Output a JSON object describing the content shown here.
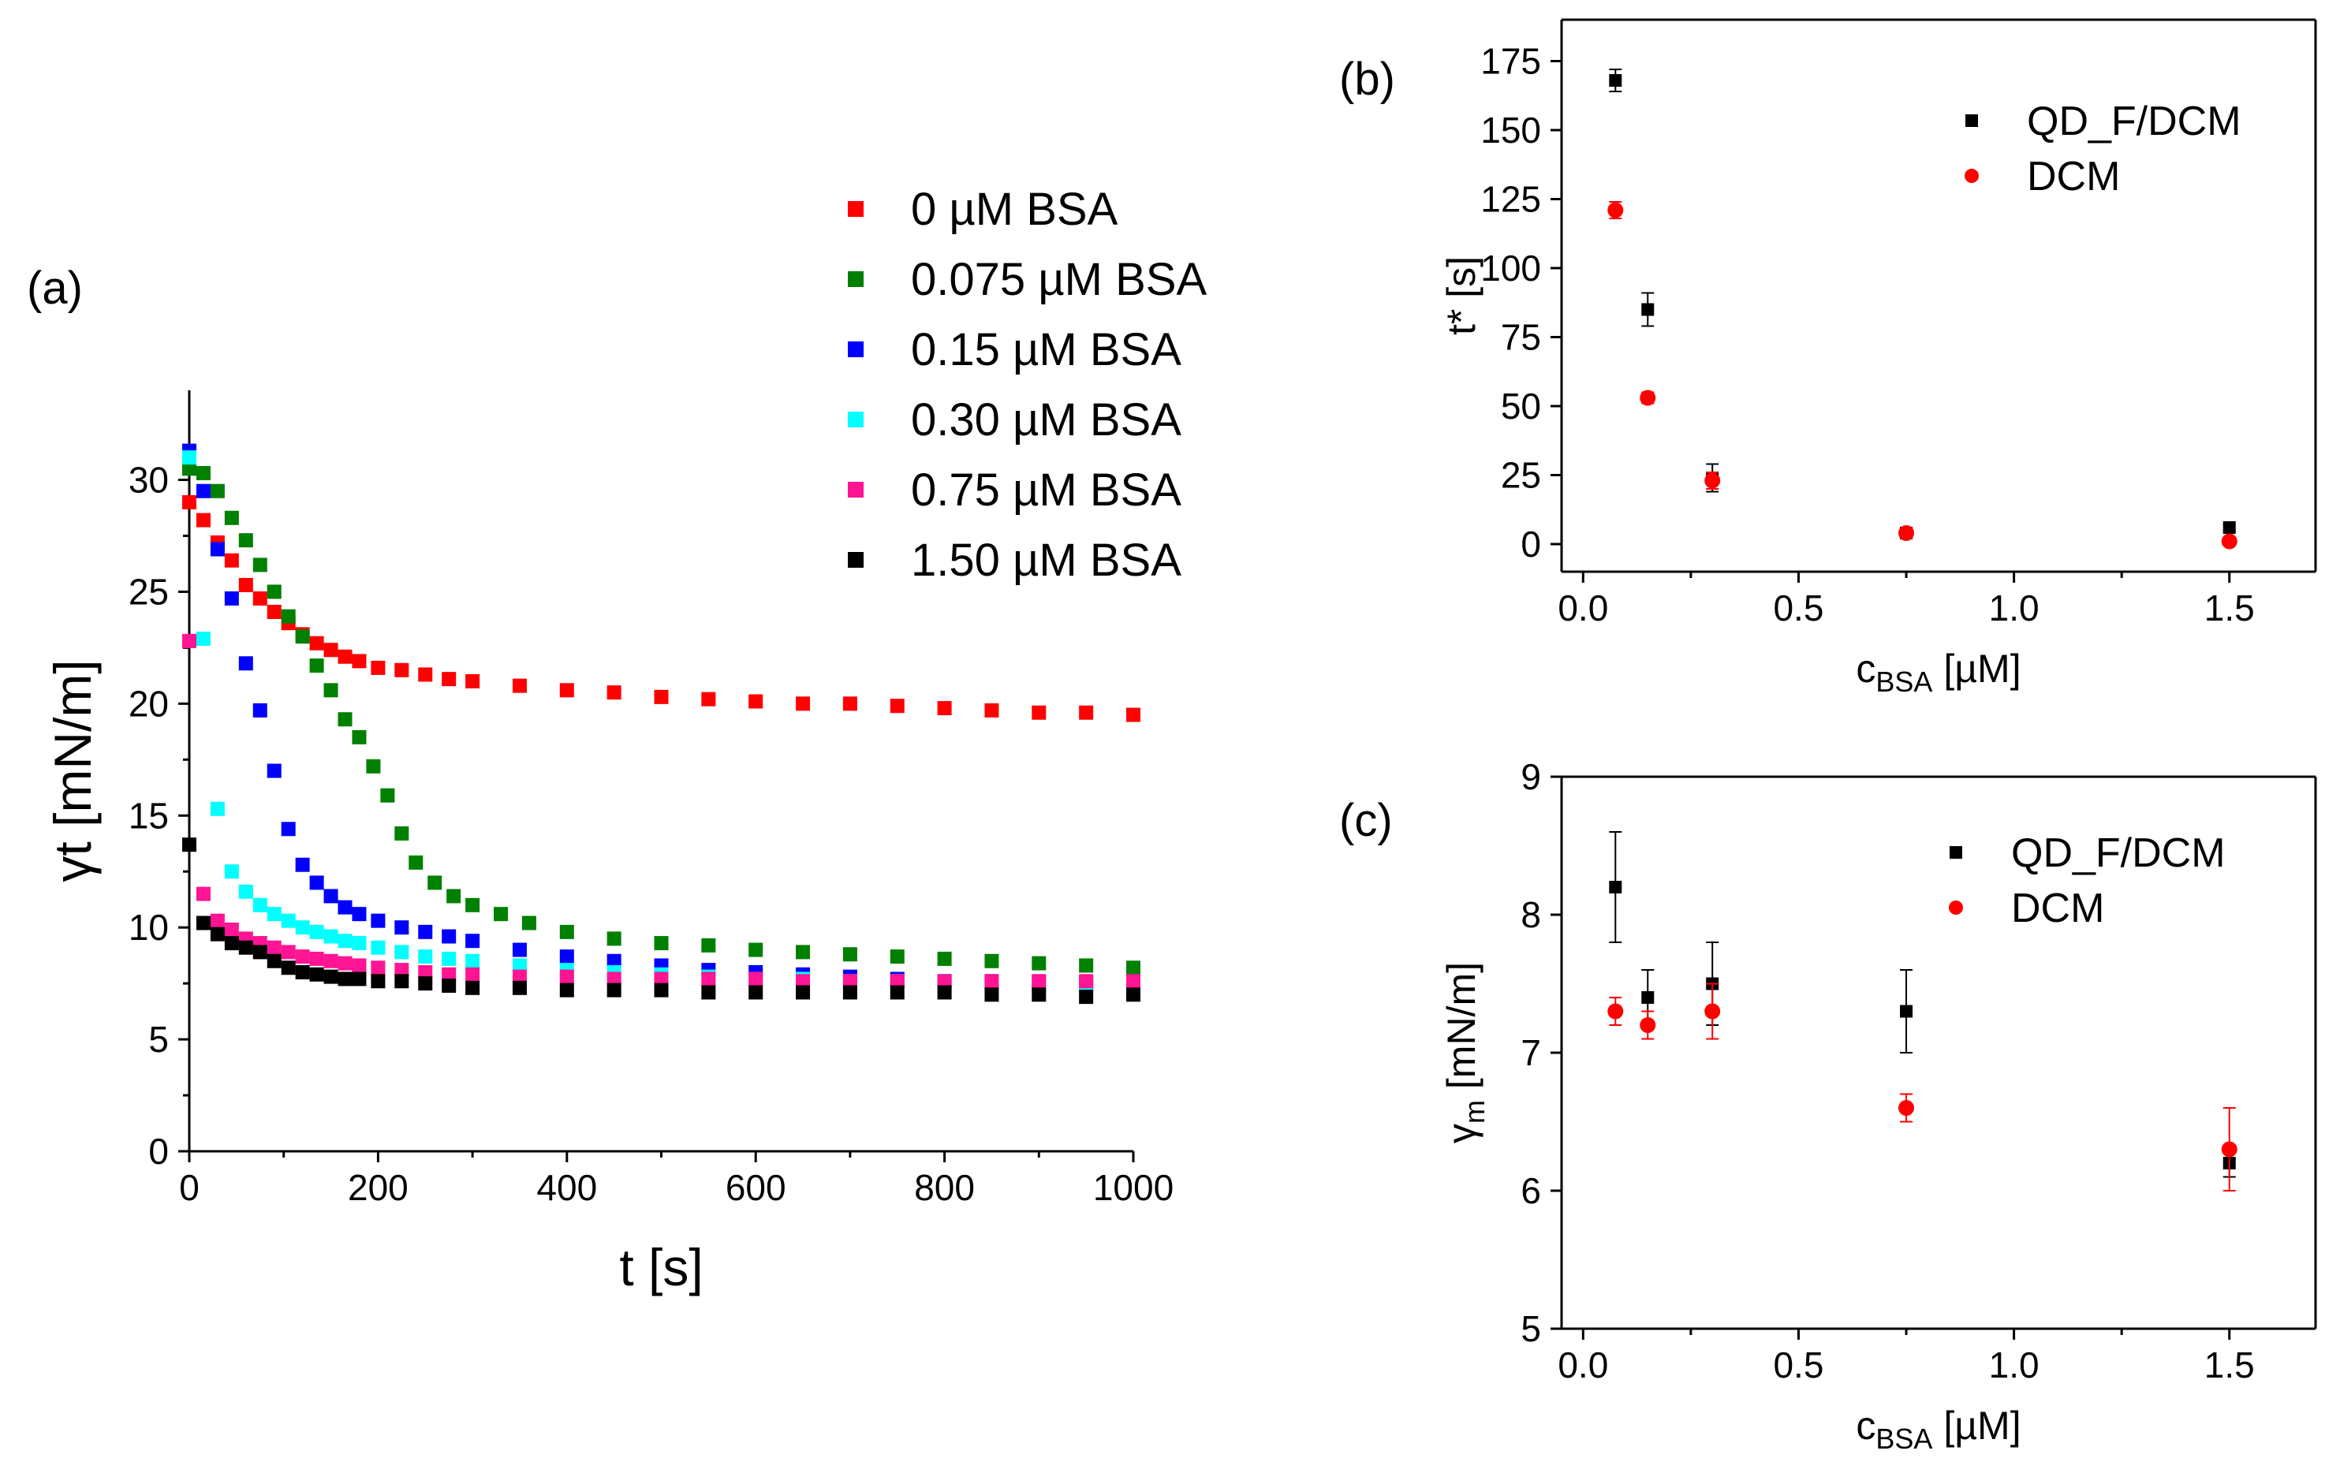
{
  "chart_data": [
    {
      "panel": "(a)",
      "type": "scatter",
      "title": "",
      "xlabel": "t [s]",
      "ylabel": "γt [mN/m]",
      "xlim": [
        0,
        1000
      ],
      "ylim": [
        0,
        34
      ],
      "xticks": [
        0,
        200,
        400,
        600,
        800,
        1000
      ],
      "yticks": [
        0,
        5,
        10,
        15,
        20,
        25,
        30
      ],
      "xtick_labels": [
        "0",
        "200",
        "400",
        "600",
        "800",
        "1000"
      ],
      "ytick_labels": [
        "0",
        "5",
        "10",
        "15",
        "20",
        "25",
        "30"
      ],
      "legend_position": "top-right (outside, above plot)",
      "series": [
        {
          "name": "0 µM BSA",
          "color": "#ff0000",
          "x": [
            0,
            15,
            30,
            45,
            60,
            75,
            90,
            105,
            120,
            135,
            150,
            165,
            180,
            200,
            225,
            250,
            275,
            300,
            350,
            400,
            450,
            500,
            550,
            600,
            650,
            700,
            750,
            800,
            850,
            900,
            950,
            1000
          ],
          "y": [
            29.0,
            28.2,
            27.2,
            26.4,
            25.3,
            24.7,
            24.1,
            23.6,
            23.1,
            22.7,
            22.4,
            22.1,
            21.9,
            21.6,
            21.5,
            21.3,
            21.1,
            21.0,
            20.8,
            20.6,
            20.5,
            20.3,
            20.2,
            20.1,
            20.0,
            20.0,
            19.9,
            19.8,
            19.7,
            19.6,
            19.6,
            19.5
          ]
        },
        {
          "name": "0.075 µM BSA",
          "color": "#008000",
          "x": [
            0,
            15,
            30,
            45,
            60,
            75,
            90,
            105,
            120,
            135,
            150,
            165,
            180,
            195,
            210,
            225,
            240,
            260,
            280,
            300,
            330,
            360,
            400,
            450,
            500,
            550,
            600,
            650,
            700,
            750,
            800,
            850,
            900,
            950,
            1000
          ],
          "y": [
            30.5,
            30.3,
            29.5,
            28.3,
            27.3,
            26.2,
            25.0,
            23.9,
            23.0,
            21.7,
            20.6,
            19.3,
            18.5,
            17.2,
            15.9,
            14.2,
            12.9,
            12.0,
            11.4,
            11.0,
            10.6,
            10.2,
            9.8,
            9.5,
            9.3,
            9.2,
            9.0,
            8.9,
            8.8,
            8.7,
            8.6,
            8.5,
            8.4,
            8.3,
            8.2
          ]
        },
        {
          "name": "0.15 µM BSA",
          "color": "#0000ff",
          "x": [
            0,
            15,
            30,
            45,
            60,
            75,
            90,
            105,
            120,
            135,
            150,
            165,
            180,
            200,
            225,
            250,
            275,
            300,
            350,
            400,
            450,
            500,
            550,
            600,
            650,
            700,
            750,
            800,
            850,
            900,
            950,
            1000
          ],
          "y": [
            31.3,
            29.5,
            26.9,
            24.7,
            21.8,
            19.7,
            17.0,
            14.4,
            12.8,
            12.0,
            11.4,
            10.9,
            10.6,
            10.3,
            10.0,
            9.8,
            9.6,
            9.4,
            9.0,
            8.7,
            8.5,
            8.3,
            8.1,
            8.0,
            7.9,
            7.8,
            7.7,
            7.6,
            7.6,
            7.5,
            7.5,
            7.4
          ]
        },
        {
          "name": "0.30 µM BSA",
          "color": "#00ffff",
          "x": [
            0,
            15,
            30,
            45,
            60,
            75,
            90,
            105,
            120,
            135,
            150,
            165,
            180,
            200,
            225,
            250,
            275,
            300,
            350,
            400,
            450,
            500,
            550,
            600,
            650,
            700,
            750,
            800,
            850,
            900,
            950,
            1000
          ],
          "y": [
            31.0,
            22.9,
            15.3,
            12.5,
            11.6,
            11.0,
            10.6,
            10.3,
            10.0,
            9.8,
            9.6,
            9.4,
            9.3,
            9.1,
            8.9,
            8.7,
            8.6,
            8.5,
            8.3,
            8.1,
            8.0,
            7.9,
            7.8,
            7.7,
            7.7,
            7.6,
            7.6,
            7.6,
            7.5,
            7.5,
            7.5,
            7.5
          ]
        },
        {
          "name": "0.75 µM BSA",
          "color": "#ff1493",
          "x": [
            0,
            15,
            30,
            45,
            60,
            75,
            90,
            105,
            120,
            135,
            150,
            165,
            180,
            200,
            225,
            250,
            275,
            300,
            350,
            400,
            450,
            500,
            550,
            600,
            650,
            700,
            750,
            800,
            850,
            900,
            950,
            1000
          ],
          "y": [
            22.8,
            11.5,
            10.3,
            9.9,
            9.5,
            9.3,
            9.1,
            8.9,
            8.7,
            8.6,
            8.5,
            8.4,
            8.3,
            8.2,
            8.1,
            8.0,
            7.9,
            7.9,
            7.8,
            7.8,
            7.7,
            7.7,
            7.7,
            7.7,
            7.6,
            7.6,
            7.6,
            7.6,
            7.6,
            7.6,
            7.6,
            7.6
          ]
        },
        {
          "name": "1.50 µM BSA",
          "color": "#000000",
          "x": [
            0,
            15,
            30,
            45,
            60,
            75,
            90,
            105,
            120,
            135,
            150,
            165,
            180,
            200,
            225,
            250,
            275,
            300,
            350,
            400,
            450,
            500,
            550,
            600,
            650,
            700,
            750,
            800,
            850,
            900,
            950,
            1000
          ],
          "y": [
            13.7,
            10.2,
            9.7,
            9.3,
            9.1,
            8.9,
            8.5,
            8.2,
            8.0,
            7.9,
            7.8,
            7.7,
            7.7,
            7.6,
            7.6,
            7.5,
            7.4,
            7.3,
            7.3,
            7.2,
            7.2,
            7.2,
            7.1,
            7.1,
            7.1,
            7.1,
            7.1,
            7.1,
            7.0,
            7.0,
            6.9,
            7.0
          ]
        }
      ]
    },
    {
      "panel": "(b)",
      "type": "scatter",
      "title": "",
      "xlabel": "c",
      "xlabel_sub": "BSA",
      "xlabel_unit": " [µM]",
      "ylabel": "t* [s]",
      "xlim": [
        -0.05,
        1.7
      ],
      "ylim": [
        -10,
        190
      ],
      "xticks": [
        0.0,
        0.5,
        1.0,
        1.5
      ],
      "yticks": [
        0,
        25,
        50,
        75,
        100,
        125,
        150,
        175
      ],
      "xtick_labels": [
        "0.0",
        "0.5",
        "1.0",
        "1.5"
      ],
      "ytick_labels": [
        "0",
        "25",
        "50",
        "75",
        "100",
        "125",
        "150",
        "175"
      ],
      "legend_position": "top-right",
      "series": [
        {
          "name": "QD_F/DCM",
          "color": "#000000",
          "marker": "square",
          "x": [
            0.075,
            0.15,
            0.3,
            0.75,
            1.5
          ],
          "y": [
            168,
            85,
            24,
            4,
            6
          ],
          "err": [
            4,
            6,
            5,
            1,
            1
          ]
        },
        {
          "name": "DCM",
          "color": "#ff0000",
          "marker": "circle",
          "x": [
            0.075,
            0.15,
            0.3,
            0.75,
            1.5
          ],
          "y": [
            121,
            53,
            23,
            4,
            1
          ],
          "err": [
            3,
            2,
            3,
            1,
            1
          ]
        }
      ]
    },
    {
      "panel": "(c)",
      "type": "scatter",
      "title": "",
      "xlabel": "c",
      "xlabel_sub": "BSA",
      "xlabel_unit": " [µM]",
      "ylabel": "γ",
      "ylabel_sub": "m",
      "ylabel_unit": " [mN/m]",
      "xlim": [
        -0.05,
        1.7
      ],
      "ylim": [
        5,
        9
      ],
      "xticks": [
        0.0,
        0.5,
        1.0,
        1.5
      ],
      "yticks": [
        5,
        6,
        7,
        8,
        9
      ],
      "xtick_labels": [
        "0.0",
        "0.5",
        "1.0",
        "1.5"
      ],
      "ytick_labels": [
        "5",
        "6",
        "7",
        "8",
        "9"
      ],
      "legend_position": "top-right",
      "series": [
        {
          "name": "QD_F/DCM",
          "color": "#000000",
          "marker": "square",
          "x": [
            0.075,
            0.15,
            0.3,
            0.75,
            1.5
          ],
          "y": [
            8.2,
            7.4,
            7.5,
            7.3,
            6.2
          ],
          "err": [
            0.4,
            0.2,
            0.3,
            0.3,
            0.1
          ]
        },
        {
          "name": "DCM",
          "color": "#ff0000",
          "marker": "circle",
          "x": [
            0.075,
            0.15,
            0.3,
            0.75,
            1.5
          ],
          "y": [
            7.3,
            7.2,
            7.3,
            6.6,
            6.3
          ],
          "err": [
            0.1,
            0.1,
            0.2,
            0.1,
            0.3
          ]
        }
      ]
    }
  ]
}
